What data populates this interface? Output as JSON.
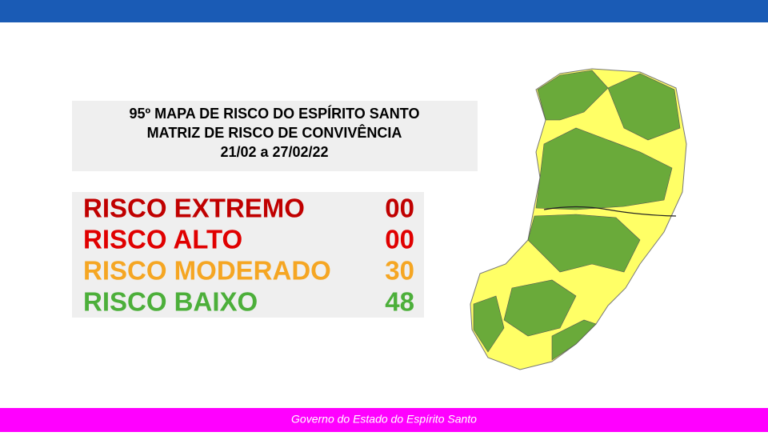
{
  "header": {
    "lines": [
      "95º MAPA DE RISCO DO ESPÍRITO SANTO",
      "MATRIZ DE RISCO DE CONVIVÊNCIA",
      "21/02 a 27/02/22"
    ]
  },
  "risk_table": {
    "rows": [
      {
        "label": "RISCO EXTREMO",
        "count": "00"
      },
      {
        "label": "RISCO ALTO",
        "count": "00"
      },
      {
        "label": "RISCO MODERADO",
        "count": "30"
      },
      {
        "label": "RISCO BAIXO",
        "count": "48"
      }
    ]
  },
  "footer": {
    "text": "Governo do Estado do Espírito Santo"
  }
}
